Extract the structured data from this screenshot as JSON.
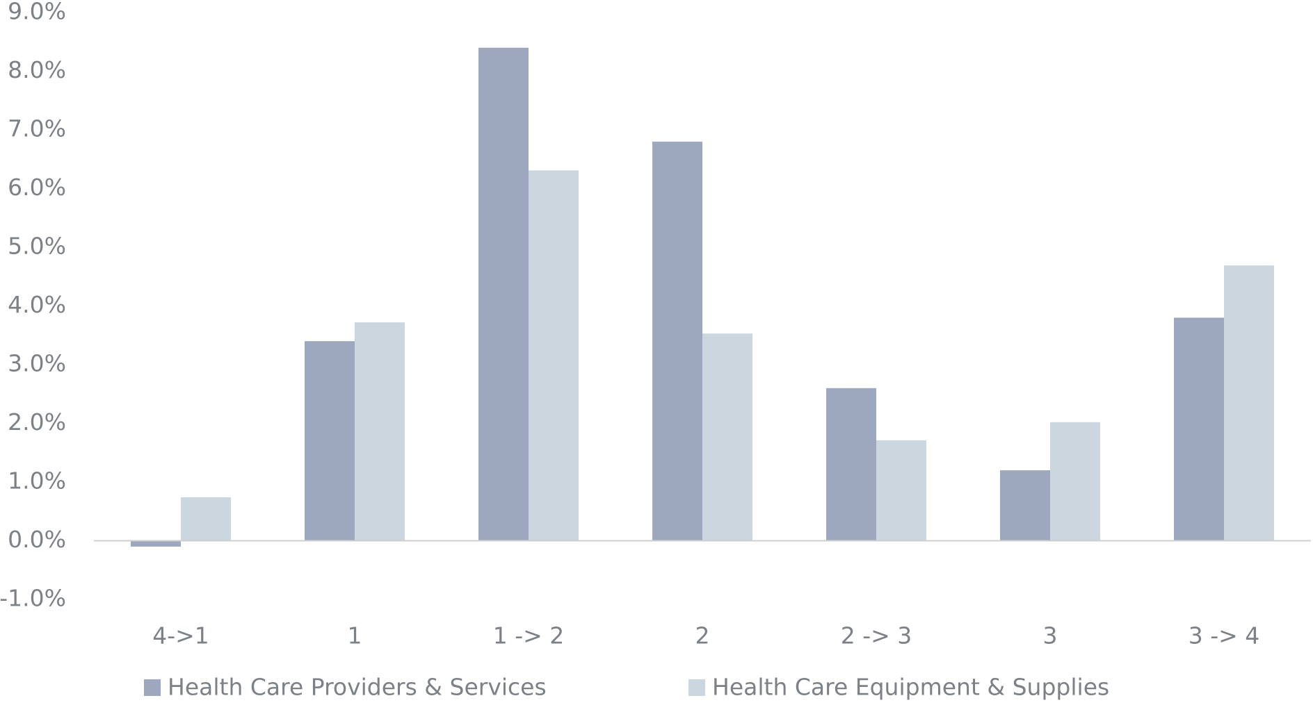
{
  "chart_data": {
    "type": "bar",
    "categories": [
      "4->1",
      "1",
      "1 -> 2",
      "2",
      "2 -> 3",
      "3",
      "3 -> 4"
    ],
    "series": [
      {
        "name": "Health Care Providers & Services",
        "color": "#9da8be",
        "values": [
          -0.1,
          3.4,
          8.4,
          6.8,
          2.6,
          1.2,
          3.8
        ]
      },
      {
        "name": "Health Care Equipment & Supplies",
        "color": "#cbd6de",
        "values": [
          0.74,
          3.72,
          6.31,
          3.53,
          1.71,
          2.02,
          4.69
        ]
      }
    ],
    "ylim": [
      -1,
      9
    ],
    "yticks": [
      {
        "value": -1,
        "label": "-1.0%"
      },
      {
        "value": 0,
        "label": "0.0%"
      },
      {
        "value": 1,
        "label": "1.0%"
      },
      {
        "value": 2,
        "label": "2.0%"
      },
      {
        "value": 3,
        "label": "3.0%"
      },
      {
        "value": 4,
        "label": "4.0%"
      },
      {
        "value": 5,
        "label": "5.0%"
      },
      {
        "value": 6,
        "label": "6.0%"
      },
      {
        "value": 7,
        "label": "7.0%"
      },
      {
        "value": 8,
        "label": "8.0%"
      },
      {
        "value": 9,
        "label": "9.0%"
      }
    ],
    "grid": false
  }
}
